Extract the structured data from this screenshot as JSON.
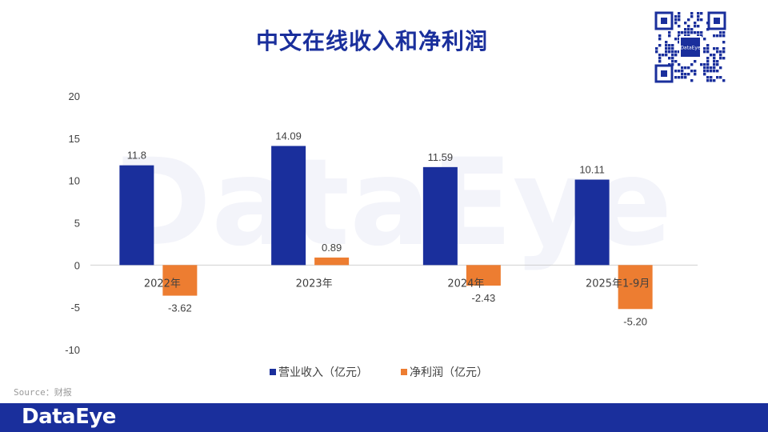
{
  "title": "中文在线收入和净利润",
  "source": "Source：财报",
  "brand": {
    "logo_text": "DataEye",
    "qr_center_text": "DataEye",
    "watermark": "DataEye"
  },
  "colors": {
    "revenue": "#1a2f9c",
    "profit": "#ed7d31",
    "title": "#1a2f9c",
    "footer": "#1a2f9c"
  },
  "chart_data": {
    "type": "bar",
    "categories": [
      "2022年",
      "2023年",
      "2024年",
      "2025年1-9月"
    ],
    "series": [
      {
        "name": "营业收入（亿元）",
        "values": [
          11.8,
          14.09,
          11.59,
          10.11
        ],
        "labels": [
          "11.8",
          "14.09",
          "11.59",
          "10.11"
        ]
      },
      {
        "name": "净利润（亿元）",
        "values": [
          -3.62,
          0.89,
          -2.43,
          -5.2
        ],
        "labels": [
          "-3.62",
          "0.89",
          "-2.43",
          "-5.20"
        ]
      }
    ],
    "ylim": [
      -10,
      20
    ],
    "yticks": [
      20,
      15,
      10,
      5,
      0,
      -5,
      -10
    ],
    "grid": false,
    "legend_position": "bottom"
  }
}
